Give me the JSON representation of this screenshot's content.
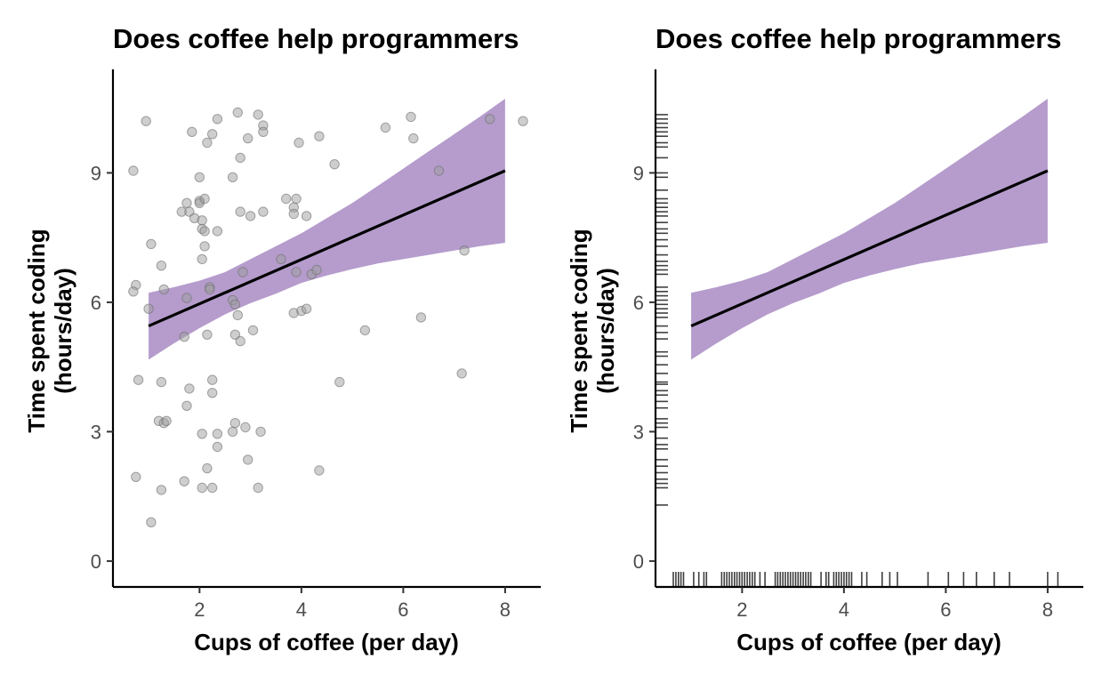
{
  "chart_data": [
    {
      "type": "scatter",
      "title": "Does coffee help programmers",
      "xlabel": "Cups of coffee (per day)",
      "ylabel_lines": [
        "Time spent coding",
        "(hours/day)"
      ],
      "xlim": [
        0.3,
        8.7
      ],
      "ylim": [
        -0.6,
        11.4
      ],
      "xticks": [
        2,
        4,
        6,
        8
      ],
      "yticks": [
        0,
        3,
        6,
        9
      ],
      "grid": false,
      "legend": "none",
      "colors": {
        "points": "#9e9e9e",
        "band": "#b59ccc",
        "line": "#000000"
      },
      "fit_line": {
        "x": [
          1.0,
          8.0
        ],
        "y": [
          5.45,
          9.05
        ]
      },
      "ribbon": {
        "x": [
          1.0,
          1.5,
          2.0,
          2.5,
          3.0,
          3.5,
          4.0,
          4.5,
          5.0,
          5.5,
          6.0,
          6.5,
          7.0,
          7.5,
          8.0
        ],
        "upper": [
          6.22,
          6.35,
          6.5,
          6.7,
          7.0,
          7.3,
          7.6,
          7.95,
          8.3,
          8.7,
          9.1,
          9.5,
          9.9,
          10.3,
          10.72
        ],
        "lower": [
          4.67,
          5.05,
          5.4,
          5.72,
          5.98,
          6.2,
          6.45,
          6.62,
          6.77,
          6.9,
          7.0,
          7.1,
          7.2,
          7.3,
          7.38
        ]
      },
      "points": [
        [
          0.95,
          10.2
        ],
        [
          0.7,
          9.05
        ],
        [
          0.75,
          6.4
        ],
        [
          0.7,
          6.25
        ],
        [
          1.0,
          5.85
        ],
        [
          1.05,
          7.35
        ],
        [
          0.8,
          4.2
        ],
        [
          0.75,
          1.95
        ],
        [
          1.05,
          0.9
        ],
        [
          1.25,
          6.85
        ],
        [
          1.3,
          6.3
        ],
        [
          1.25,
          4.15
        ],
        [
          1.2,
          3.25
        ],
        [
          1.3,
          3.2
        ],
        [
          1.35,
          3.25
        ],
        [
          1.25,
          1.65
        ],
        [
          1.65,
          8.1
        ],
        [
          1.75,
          8.3
        ],
        [
          1.8,
          8.1
        ],
        [
          1.75,
          6.1
        ],
        [
          1.7,
          5.2
        ],
        [
          1.75,
          3.6
        ],
        [
          1.8,
          4.0
        ],
        [
          1.7,
          1.85
        ],
        [
          1.85,
          9.95
        ],
        [
          1.9,
          7.95
        ],
        [
          2.0,
          8.9
        ],
        [
          2.0,
          8.35
        ],
        [
          2.0,
          8.3
        ],
        [
          2.05,
          7.9
        ],
        [
          2.05,
          7.7
        ],
        [
          2.1,
          7.65
        ],
        [
          2.05,
          7.0
        ],
        [
          2.1,
          7.3
        ],
        [
          2.1,
          8.4
        ],
        [
          2.15,
          9.7
        ],
        [
          2.25,
          9.9
        ],
        [
          2.35,
          10.25
        ],
        [
          2.2,
          6.35
        ],
        [
          2.2,
          6.3
        ],
        [
          2.15,
          5.25
        ],
        [
          2.25,
          4.2
        ],
        [
          2.25,
          3.9
        ],
        [
          2.05,
          2.95
        ],
        [
          2.35,
          2.95
        ],
        [
          2.35,
          2.65
        ],
        [
          2.15,
          2.15
        ],
        [
          2.05,
          1.7
        ],
        [
          2.25,
          1.7
        ],
        [
          2.35,
          7.65
        ],
        [
          2.65,
          8.9
        ],
        [
          2.75,
          10.4
        ],
        [
          2.8,
          9.35
        ],
        [
          2.8,
          8.1
        ],
        [
          2.85,
          6.7
        ],
        [
          2.65,
          6.05
        ],
        [
          2.7,
          5.95
        ],
        [
          2.75,
          5.7
        ],
        [
          2.7,
          5.25
        ],
        [
          2.8,
          5.1
        ],
        [
          2.7,
          3.2
        ],
        [
          2.65,
          3.0
        ],
        [
          2.9,
          3.1
        ],
        [
          2.95,
          2.35
        ],
        [
          2.95,
          9.8
        ],
        [
          3.0,
          8.0
        ],
        [
          3.05,
          5.35
        ],
        [
          3.15,
          10.35
        ],
        [
          3.25,
          10.1
        ],
        [
          3.25,
          9.95
        ],
        [
          3.25,
          8.1
        ],
        [
          3.2,
          3.0
        ],
        [
          3.15,
          1.7
        ],
        [
          3.6,
          7.0
        ],
        [
          3.7,
          8.4
        ],
        [
          3.85,
          8.2
        ],
        [
          3.85,
          8.05
        ],
        [
          3.9,
          8.4
        ],
        [
          3.9,
          6.7
        ],
        [
          3.85,
          5.75
        ],
        [
          3.95,
          9.7
        ],
        [
          4.0,
          5.8
        ],
        [
          4.1,
          5.85
        ],
        [
          4.1,
          8.0
        ],
        [
          4.2,
          6.65
        ],
        [
          4.3,
          6.75
        ],
        [
          4.35,
          9.85
        ],
        [
          4.35,
          2.1
        ],
        [
          4.65,
          9.2
        ],
        [
          4.75,
          4.15
        ],
        [
          5.25,
          5.35
        ],
        [
          5.65,
          10.05
        ],
        [
          6.15,
          10.3
        ],
        [
          6.2,
          9.8
        ],
        [
          6.35,
          5.65
        ],
        [
          6.7,
          9.05
        ],
        [
          7.15,
          4.35
        ],
        [
          7.2,
          7.2
        ],
        [
          7.7,
          10.25
        ],
        [
          8.35,
          10.2
        ]
      ]
    },
    {
      "type": "line",
      "title": "Does coffee help programmers",
      "xlabel": "Cups of coffee (per day)",
      "ylabel_lines": [
        "Time spent coding",
        "(hours/day)"
      ],
      "xlim": [
        0.3,
        8.7
      ],
      "ylim": [
        -0.6,
        11.4
      ],
      "xticks": [
        2,
        4,
        6,
        8
      ],
      "yticks": [
        0,
        3,
        6,
        9
      ],
      "grid": false,
      "legend": "none",
      "colors": {
        "band": "#b59ccc",
        "line": "#000000",
        "rug": "#000000"
      },
      "fit_line": {
        "x": [
          1.0,
          8.0
        ],
        "y": [
          5.45,
          9.05
        ]
      },
      "ribbon": {
        "x": [
          1.0,
          1.5,
          2.0,
          2.5,
          3.0,
          3.5,
          4.0,
          4.5,
          5.0,
          5.5,
          6.0,
          6.5,
          7.0,
          7.5,
          8.0
        ],
        "upper": [
          6.22,
          6.35,
          6.5,
          6.7,
          7.0,
          7.3,
          7.6,
          7.95,
          8.3,
          8.7,
          9.1,
          9.5,
          9.9,
          10.3,
          10.72
        ],
        "lower": [
          4.67,
          5.05,
          5.4,
          5.72,
          5.98,
          6.2,
          6.45,
          6.62,
          6.77,
          6.9,
          7.0,
          7.1,
          7.2,
          7.3,
          7.38
        ]
      },
      "rug_x": [
        0.65,
        0.7,
        0.75,
        0.8,
        0.85,
        1.05,
        1.15,
        1.25,
        1.3,
        1.6,
        1.65,
        1.7,
        1.75,
        1.8,
        1.85,
        1.9,
        1.95,
        2.0,
        2.05,
        2.1,
        2.15,
        2.2,
        2.25,
        2.35,
        2.45,
        2.65,
        2.7,
        2.75,
        2.8,
        2.85,
        2.9,
        2.95,
        3.0,
        3.05,
        3.1,
        3.15,
        3.2,
        3.25,
        3.3,
        3.35,
        3.55,
        3.65,
        3.7,
        3.8,
        3.85,
        3.9,
        3.95,
        4.0,
        4.05,
        4.1,
        4.15,
        4.35,
        4.45,
        4.75,
        4.9,
        5.05,
        5.65,
        6.05,
        6.35,
        6.6,
        6.95,
        7.25,
        8.0,
        8.2
      ],
      "rug_y": [
        1.3,
        1.7,
        1.8,
        1.9,
        2.05,
        2.2,
        2.35,
        2.6,
        2.7,
        2.85,
        3.1,
        3.2,
        3.3,
        3.55,
        3.7,
        3.85,
        3.95,
        4.1,
        4.15,
        4.35,
        4.55,
        4.75,
        4.85,
        5.15,
        5.3,
        5.45,
        5.65,
        5.75,
        5.85,
        5.95,
        6.05,
        6.15,
        6.25,
        6.35,
        6.65,
        6.75,
        6.85,
        6.95,
        7.1,
        7.3,
        7.45,
        7.6,
        7.7,
        7.85,
        8.0,
        8.1,
        8.2,
        8.3,
        8.4,
        8.6,
        8.9,
        9.0,
        9.35,
        9.6,
        9.7,
        9.85,
        9.95,
        10.05,
        10.15,
        10.25,
        10.35
      ]
    }
  ]
}
